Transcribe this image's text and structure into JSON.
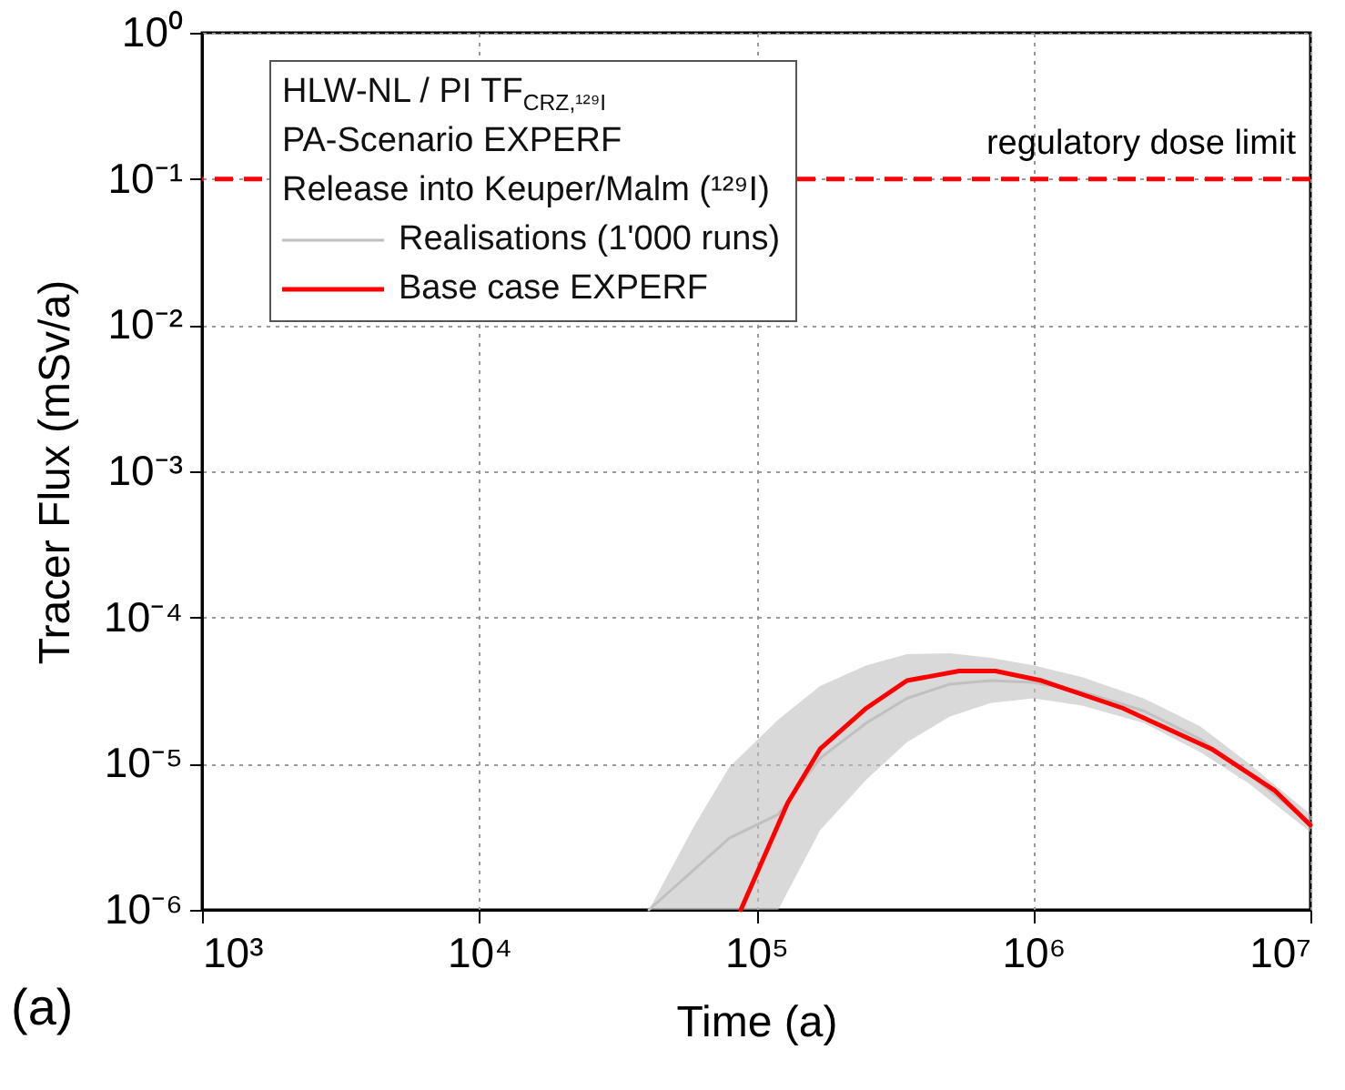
{
  "chart_data": {
    "type": "line",
    "xlabel": "Time (a)",
    "ylabel": "Tracer Flux (mSv/a)",
    "log": "xy",
    "grid": true,
    "legend": "top left",
    "legend_title": "HLW-NL / PI TF$_{CRZ,¹²⁹I}$\nPA-Scenario EXPERF\nRelease into Keuper/Malm (¹²⁹I)",
    "xlim": [
      1000,
      10000000
    ],
    "xticks": [
      {
        "value": 1000,
        "label": "10³"
      },
      {
        "value": 10000,
        "label": "10⁴"
      },
      {
        "value": 100000,
        "label": "10⁵"
      },
      {
        "value": 1000000,
        "label": "10⁶"
      },
      {
        "value": 10000000,
        "label": "10⁷"
      }
    ],
    "ylim": [
      1e-06,
      1
    ],
    "yticks": [
      {
        "value": 1e-06,
        "label": "10⁻⁶"
      },
      {
        "value": 1e-05,
        "label": "10⁻⁵"
      },
      {
        "value": 0.0001,
        "label": "10⁻⁴"
      },
      {
        "value": 0.001,
        "label": "10⁻³"
      },
      {
        "value": 0.01,
        "label": "10⁻²"
      },
      {
        "value": 0.1,
        "label": "10⁻¹"
      },
      {
        "value": 1,
        "label": "10⁰"
      }
    ],
    "series": [
      {
        "name": "Realisations (1'000 runs)",
        "type": "line",
        "color": "#c0c0c0",
        "x": [
          41000,
          60000,
          80000,
          120000,
          170000,
          250000,
          350000,
          500000,
          700000,
          1000000,
          1500000,
          2500000,
          4000000,
          6000000,
          10000000
        ],
        "values": [
          1e-06,
          1.9e-06,
          3.1e-06,
          4.5e-06,
          1.09e-05,
          1.9e-05,
          2.8e-05,
          3.5e-05,
          3.7e-05,
          3.6e-05,
          3.1e-05,
          2.3e-05,
          1.47e-05,
          8.5e-06,
          3.9e-06
        ],
        "upper": [
          1e-06,
          3.8e-06,
          9.5e-06,
          2e-05,
          3.4e-05,
          4.7e-05,
          5.6e-05,
          5.7e-05,
          5.3e-05,
          4.7e-05,
          3.9e-05,
          2.8e-05,
          1.8e-05,
          1e-05,
          4.5e-06
        ],
        "lower": [
          1e-06,
          1e-06,
          1e-06,
          1e-06,
          3.5e-06,
          7.8e-06,
          1.4e-05,
          2.1e-05,
          2.6e-05,
          2.8e-05,
          2.5e-05,
          1.9e-05,
          1.2e-05,
          7.3e-06,
          3.4e-06
        ]
      },
      {
        "name": "Base case EXPERF",
        "type": "line",
        "color": "#ff0000",
        "x": [
          88000,
          130000,
          170000,
          250000,
          350000,
          540000,
          730000,
          1070000,
          2100000,
          4400000,
          7400000,
          10000000
        ],
        "values": [
          1e-06,
          5.4e-06,
          1.26e-05,
          2.4e-05,
          3.7e-05,
          4.3e-05,
          4.3e-05,
          3.7e-05,
          2.4e-05,
          1.26e-05,
          6.6e-06,
          3.8e-06
        ]
      }
    ],
    "ref_lines": [
      {
        "axis": "y",
        "value": 0.1,
        "label": "regulatory dose limit",
        "color": "#ff0000",
        "line_style": "dashed"
      }
    ],
    "annotations": [
      "(a)"
    ]
  }
}
